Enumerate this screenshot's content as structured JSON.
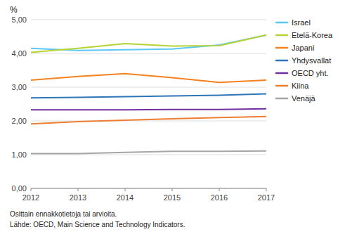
{
  "chart_data": {
    "type": "line",
    "ylabel": "%",
    "annotations": [
      "Osittain ennakkotietoja tai arvioita.",
      "Lähde: OECD, Main Science and Technology Indicators."
    ],
    "x": [
      2012,
      2013,
      2014,
      2015,
      2016,
      2017
    ],
    "series": [
      {
        "name": "Israel",
        "color": "#5bc8f5",
        "values": [
          4.15,
          4.09,
          4.11,
          4.13,
          4.25,
          4.54
        ]
      },
      {
        "name": "Etelä-Korea",
        "color": "#b5d334",
        "values": [
          4.03,
          4.15,
          4.29,
          4.22,
          4.23,
          4.55
        ]
      },
      {
        "name": "Japani",
        "color": "#f5821e",
        "values": [
          3.21,
          3.32,
          3.4,
          3.28,
          3.14,
          3.21
        ]
      },
      {
        "name": "Yhdysvallat",
        "color": "#2e75b6",
        "values": [
          2.68,
          2.7,
          2.72,
          2.74,
          2.76,
          2.8
        ]
      },
      {
        "name": "OECD yht.",
        "color": "#7030a0",
        "values": [
          2.33,
          2.33,
          2.33,
          2.34,
          2.34,
          2.36
        ]
      },
      {
        "name": "Kiina",
        "color": "#ed7d31",
        "values": [
          1.91,
          1.98,
          2.02,
          2.06,
          2.1,
          2.13
        ]
      },
      {
        "name": "Venäjä",
        "color": "#a5a5a5",
        "values": [
          1.03,
          1.03,
          1.07,
          1.1,
          1.1,
          1.11
        ]
      }
    ],
    "xlim": [
      2012,
      2017
    ],
    "ylim": [
      0.0,
      5.0
    ],
    "xticks": [
      2012,
      2013,
      2014,
      2015,
      2016,
      2017
    ],
    "yticks": [
      {
        "value": 0.0,
        "label": "0,00"
      },
      {
        "value": 1.0,
        "label": "1,00"
      },
      {
        "value": 2.0,
        "label": "2,00"
      },
      {
        "value": 3.0,
        "label": "3,00"
      },
      {
        "value": 4.0,
        "label": "4,00"
      },
      {
        "value": 5.0,
        "label": "5,00"
      }
    ],
    "grid": true,
    "legend": "right"
  }
}
